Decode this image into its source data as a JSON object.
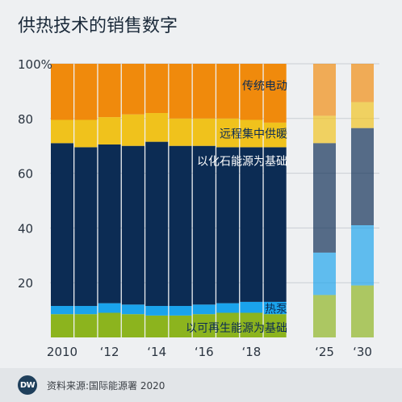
{
  "title": "供热技术的销售数字",
  "source": "资料来源:国际能源署 2020",
  "logo": "DW",
  "colors": {
    "电力": "#f08a0c",
    "集中": "#f0c21c",
    "化石": "#0c2c54",
    "热泵": "#1aa3ec",
    "可再": "#8cb41e"
  },
  "chart_data": {
    "type": "bar",
    "stacked": true,
    "ylim": [
      0,
      100
    ],
    "yticks": [
      "20",
      "40",
      "60",
      "80",
      "100%"
    ],
    "xticks": [
      {
        "label": "2010",
        "at": "2010"
      },
      {
        "label": "‘12",
        "at": "2012"
      },
      {
        "label": "‘14",
        "at": "2014"
      },
      {
        "label": "‘16",
        "at": "2016"
      },
      {
        "label": "‘18",
        "at": "2018"
      },
      {
        "label": "‘25",
        "at": "2025"
      },
      {
        "label": "‘30",
        "at": "2030"
      }
    ],
    "categories": [
      "2010",
      "2011",
      "2012",
      "2013",
      "2014",
      "2015",
      "2016",
      "2017",
      "2018",
      "2019",
      "2025",
      "2030"
    ],
    "projected": [
      false,
      false,
      false,
      false,
      false,
      false,
      false,
      false,
      false,
      false,
      true,
      true
    ],
    "series": [
      {
        "key": "可再",
        "name": "以可再生能源为基础",
        "values": [
          8.5,
          8.5,
          9,
          8.5,
          8,
          8,
          8.5,
          9,
          9,
          8.5,
          15.5,
          19
        ]
      },
      {
        "key": "热泵",
        "name": "热泵",
        "values": [
          3,
          3,
          3.5,
          3.5,
          3.5,
          3.5,
          3.5,
          3.5,
          4,
          4.5,
          15.5,
          22
        ]
      },
      {
        "key": "化石",
        "name": "以化石能源为基础",
        "values": [
          59.5,
          58,
          58,
          58,
          60,
          58.5,
          58,
          57,
          56.5,
          56.5,
          40,
          35.5
        ]
      },
      {
        "key": "集中",
        "name": "远程集中供暖",
        "values": [
          8.5,
          10,
          10,
          11.5,
          10.5,
          10,
          10,
          10.5,
          10,
          9,
          10,
          9.5
        ]
      },
      {
        "key": "电力",
        "name": "传统电动",
        "values": [
          20.5,
          20.5,
          19.5,
          18.5,
          18,
          20,
          20,
          20,
          20.5,
          21.5,
          19,
          14
        ]
      }
    ]
  }
}
